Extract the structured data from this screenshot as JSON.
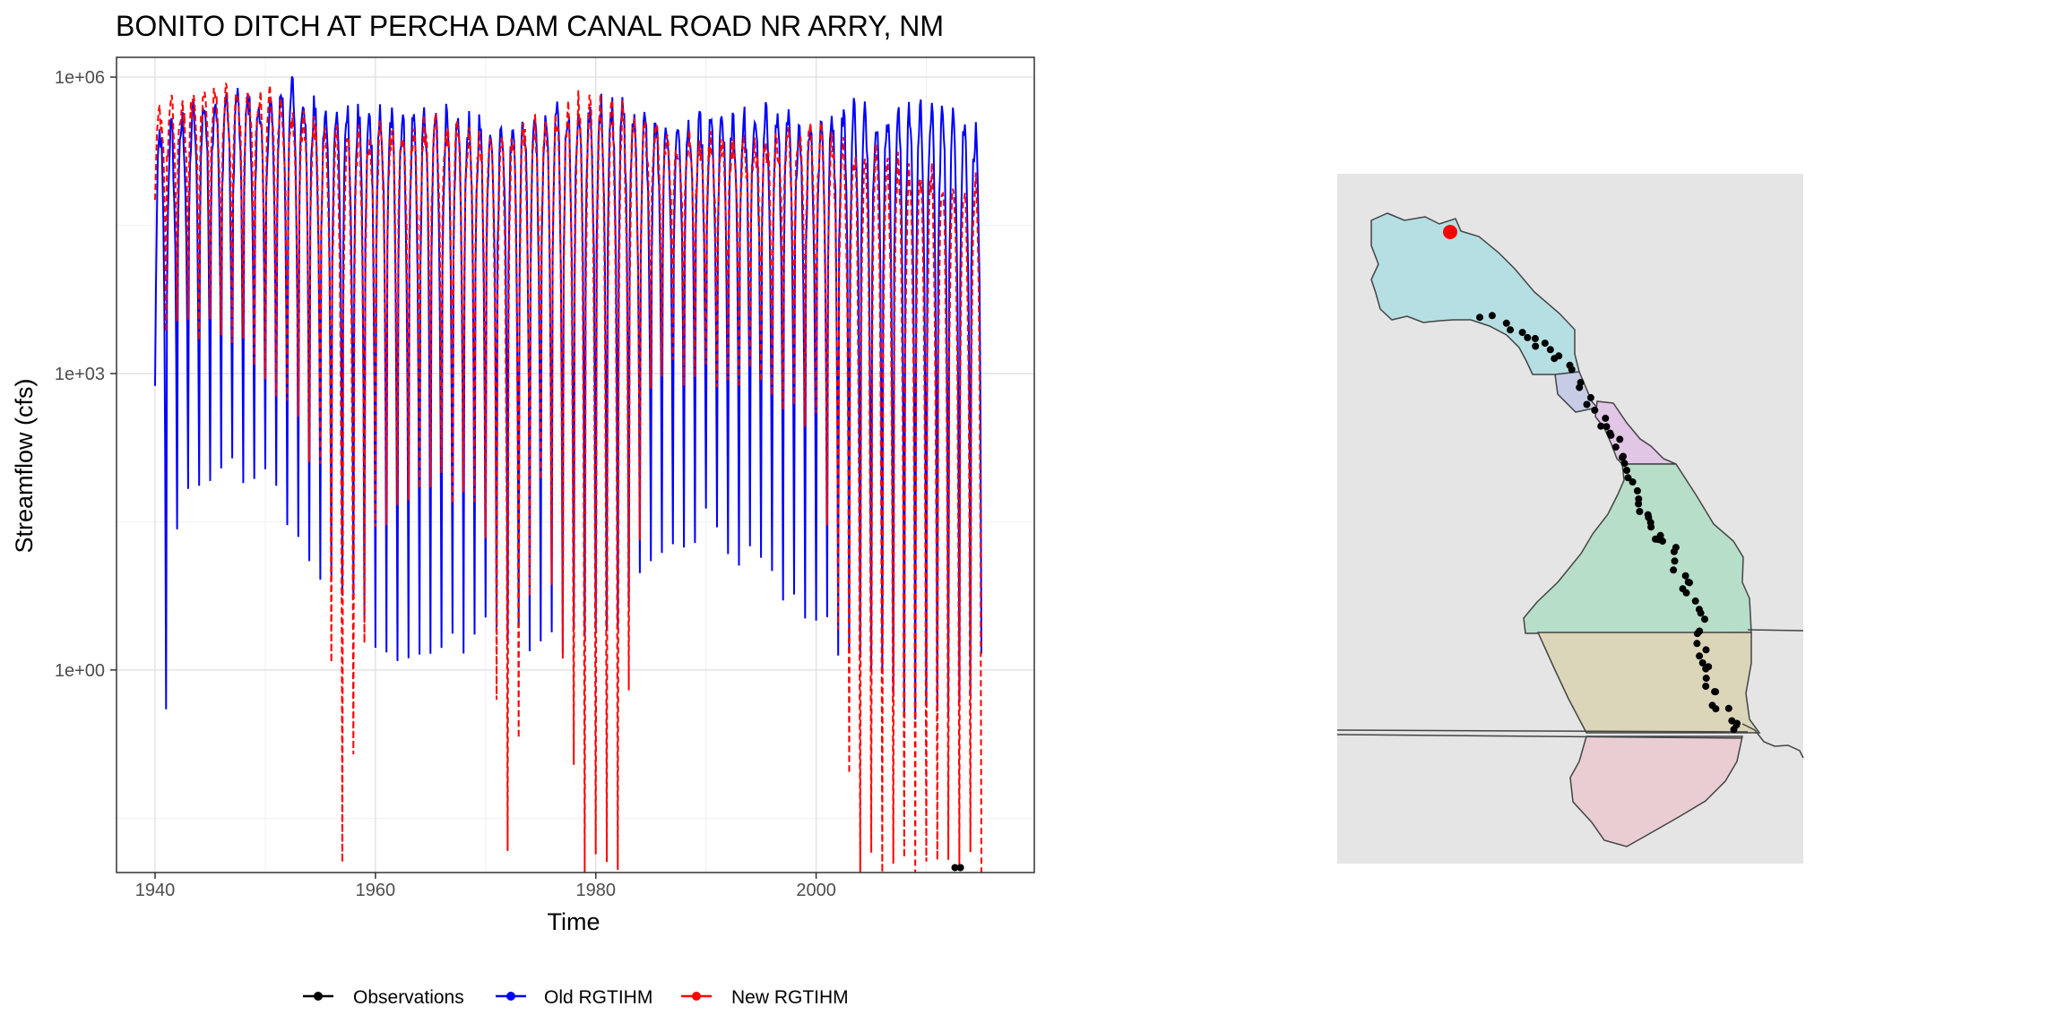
{
  "chart_data": [
    {
      "type": "line",
      "title": "BONITO DITCH AT PERCHA DAM CANAL ROAD NR ARRY, NM",
      "xlabel": "Time",
      "ylabel": "Streamflow (cfs)",
      "x_ticks": [
        "1940",
        "1960",
        "1980",
        "2000"
      ],
      "y_ticks": [
        "1e+00",
        "1e+03",
        "1e+06"
      ],
      "y_scale": "log10",
      "xlim": [
        1936.5,
        2019.8
      ],
      "ylim_log10": [
        -2.05,
        6.2
      ],
      "grid": true,
      "legend_position": "bottom",
      "series": [
        {
          "name": "Observations",
          "color": "#000000",
          "style": "solid-with-points",
          "points": [
            [
              2012.6,
              0.01
            ],
            [
              2013.1,
              0.01
            ]
          ]
        },
        {
          "name": "Old RGTIHM",
          "color": "#0000FF",
          "style": "solid",
          "monthly_log10": {
            "x_start": 1940.0,
            "x_end": 2015.0,
            "step": 0.0833333,
            "peak_years": [
              [
                1940,
                5.4
              ],
              [
                1942,
                5.5
              ],
              [
                1944,
                5.7
              ],
              [
                1946,
                5.8
              ],
              [
                1948,
                5.8
              ],
              [
                1950,
                5.7
              ],
              [
                1952,
                5.9
              ],
              [
                1953,
                5.9
              ],
              [
                1955,
                5.6
              ],
              [
                1960,
                5.6
              ],
              [
                1965,
                5.6
              ],
              [
                1970,
                5.5
              ],
              [
                1975,
                5.6
              ],
              [
                1980,
                5.7
              ],
              [
                1982,
                5.7
              ],
              [
                1985,
                5.5
              ],
              [
                1990,
                5.5
              ],
              [
                1995,
                5.6
              ],
              [
                2000,
                5.5
              ],
              [
                2003,
                5.7
              ],
              [
                2005,
                5.6
              ],
              [
                2008,
                5.6
              ],
              [
                2010,
                5.7
              ],
              [
                2015,
                5.4
              ]
            ],
            "trough_years": [
              [
                1940,
                0.0
              ],
              [
                1941,
                -0.5
              ],
              [
                1942,
                1.5
              ],
              [
                1945,
                2.0
              ],
              [
                1950,
                2.0
              ],
              [
                1955,
                1.0
              ],
              [
                1960,
                0.3
              ],
              [
                1965,
                0.0
              ],
              [
                1970,
                0.5
              ],
              [
                1975,
                0.2
              ],
              [
                1980,
                0.3
              ],
              [
                1985,
                1.0
              ],
              [
                1990,
                1.5
              ],
              [
                1995,
                1.0
              ],
              [
                2000,
                0.5
              ],
              [
                2005,
                0.0
              ],
              [
                2010,
                -0.5
              ],
              [
                2015,
                0.0
              ]
            ]
          }
        },
        {
          "name": "New RGTIHM",
          "color": "#FF0000",
          "style": "dashed",
          "monthly_log10": {
            "x_start": 1940.0,
            "x_end": 2015.0,
            "step": 0.0833333,
            "peak_years": [
              [
                1940,
                5.6
              ],
              [
                1942,
                5.7
              ],
              [
                1944,
                5.8
              ],
              [
                1946,
                5.8
              ],
              [
                1948,
                5.8
              ],
              [
                1950,
                5.8
              ],
              [
                1952,
                5.7
              ],
              [
                1955,
                5.4
              ],
              [
                1960,
                5.4
              ],
              [
                1965,
                5.5
              ],
              [
                1970,
                5.4
              ],
              [
                1975,
                5.5
              ],
              [
                1980,
                5.8
              ],
              [
                1985,
                5.4
              ],
              [
                1990,
                5.3
              ],
              [
                1995,
                5.3
              ],
              [
                2000,
                5.4
              ],
              [
                2005,
                5.2
              ],
              [
                2010,
                5.0
              ],
              [
                2015,
                4.9
              ]
            ],
            "trough_years": [
              [
                1940,
                3.5
              ],
              [
                1945,
                3.5
              ],
              [
                1950,
                3.0
              ],
              [
                1955,
                2.0
              ],
              [
                1957,
                -2.0
              ],
              [
                1960,
                1.5
              ],
              [
                1965,
                2.0
              ],
              [
                1970,
                1.5
              ],
              [
                1972,
                -2.0
              ],
              [
                1975,
                2.0
              ],
              [
                1979,
                -2.0
              ],
              [
                1982,
                -2.0
              ],
              [
                1985,
                3.0
              ],
              [
                1990,
                3.0
              ],
              [
                1995,
                3.0
              ],
              [
                2000,
                2.5
              ],
              [
                2004,
                -2.0
              ],
              [
                2010,
                -2.0
              ],
              [
                2015,
                -2.0
              ]
            ]
          }
        }
      ]
    },
    {
      "type": "map",
      "title": "",
      "colors": {
        "panel_background": "#e5e5e5",
        "region_1": "#b6dfe3",
        "region_2": "#c6cce6",
        "region_3": "#e2c6e6",
        "region_4": "#b7dec9",
        "region_5": "#dbd6b9",
        "region_6": "#e9cdd3",
        "site_points": "#000000",
        "selected_site": "#ff0000"
      },
      "site_count": 76
    }
  ],
  "legend": {
    "items": [
      {
        "label": "Observations",
        "color": "#000000"
      },
      {
        "label": "Old RGTIHM",
        "color": "#0000FF"
      },
      {
        "label": "New RGTIHM",
        "color": "#FF0000"
      }
    ]
  }
}
